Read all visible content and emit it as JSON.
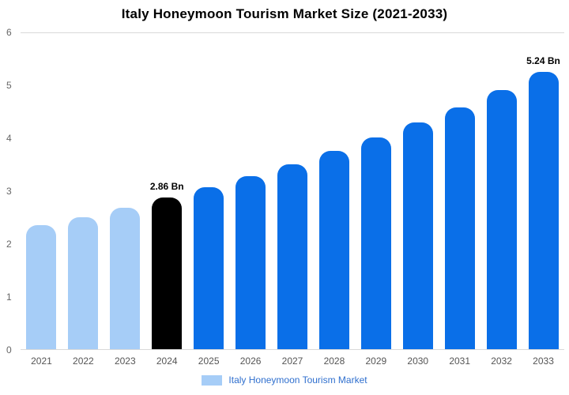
{
  "title": "Italy Honeymoon Tourism Market Size (2021-2033)",
  "colors": {
    "past": "#a6cdf7",
    "current": "#000000",
    "forecast": "#0a6fe8",
    "grid": "#d9d9d9"
  },
  "legend": {
    "label": "Italy Honeymoon Tourism Market",
    "swatch_color": "#a6cdf7",
    "text_color": "#2f6fce"
  },
  "chart_data": {
    "type": "bar",
    "title": "Italy Honeymoon Tourism Market Size (2021-2033)",
    "xlabel": "",
    "ylabel": "",
    "ylim": [
      0,
      6
    ],
    "yticks": [
      0,
      1,
      2,
      3,
      4,
      5,
      6
    ],
    "grid": "top-and-bottom-lines-only",
    "legend_position": "bottom-center",
    "categories": [
      "2021",
      "2022",
      "2023",
      "2024",
      "2025",
      "2026",
      "2027",
      "2028",
      "2029",
      "2030",
      "2031",
      "2032",
      "2033"
    ],
    "values": [
      2.34,
      2.5,
      2.67,
      2.86,
      3.06,
      3.27,
      3.5,
      3.74,
      4.0,
      4.28,
      4.57,
      4.89,
      5.24
    ],
    "bar_roles": [
      "past",
      "past",
      "past",
      "current",
      "forecast",
      "forecast",
      "forecast",
      "forecast",
      "forecast",
      "forecast",
      "forecast",
      "forecast",
      "forecast"
    ],
    "annotations": [
      {
        "index": 3,
        "text": "2.86 Bn"
      },
      {
        "index": 12,
        "text": "5.24 Bn"
      }
    ],
    "series_name": "Italy Honeymoon Tourism Market"
  }
}
